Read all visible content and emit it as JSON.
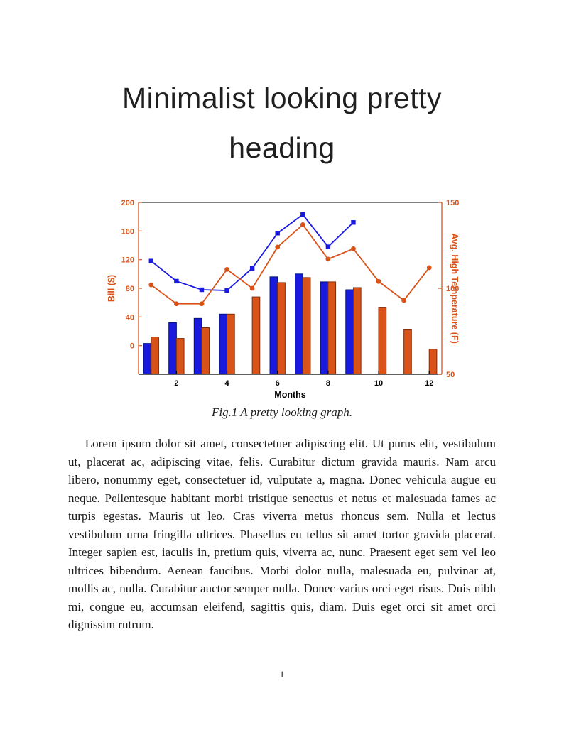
{
  "document": {
    "heading": "Minimalist looking pretty heading",
    "figure_caption": "Fig.1 A pretty looking graph.",
    "paragraph": "Lorem ipsum dolor sit amet, consectetuer adipiscing elit. Ut purus elit, vestibulum ut, placerat ac, adipiscing vitae, felis. Curabitur dictum gravida mauris. Nam arcu libero, nonummy eget, consectetuer id, vulputate a, magna. Donec vehicula augue eu neque. Pellentesque habitant morbi tristique senectus et netus et malesuada fames ac turpis egestas. Mauris ut leo. Cras viverra metus rhoncus sem. Nulla et lectus vestibulum urna fringilla ultrices. Phasellus eu tellus sit amet tortor gravida placerat. Integer sapien est, iaculis in, pretium quis, viverra ac, nunc. Praesent eget sem vel leo ultrices bibendum. Aenean faucibus. Morbi dolor nulla, malesuada eu, pulvinar at, mollis ac, nulla. Curabitur auctor semper nulla. Donec varius orci eget risus. Duis nibh mi, congue eu, accumsan eleifend, sagittis quis, diam. Duis eget orci sit amet orci dignissim rutrum.",
    "page_number": "1"
  },
  "chart_data": {
    "type": "bar",
    "subtype": "grouped-bars-with-two-lines-dual-y-axis",
    "title": "",
    "xlabel": "Months",
    "x": [
      1,
      2,
      3,
      4,
      5,
      6,
      7,
      8,
      9,
      10,
      11,
      12
    ],
    "x_ticks": [
      2,
      4,
      6,
      8,
      10,
      12
    ],
    "xlim": [
      0.5,
      12.5
    ],
    "grid": false,
    "legend": "none",
    "axes": {
      "left": {
        "label": "Bill ($)",
        "lim": [
          -40,
          200
        ],
        "ticks": [
          0,
          40,
          80,
          120,
          160,
          200
        ],
        "color": "#D95319"
      },
      "right": {
        "label": "Avg. High Temperature (F)",
        "lim": [
          50,
          150
        ],
        "ticks": [
          50,
          100,
          150
        ],
        "color": "#D95319"
      }
    },
    "bar_baseline": "axis-bottom",
    "series": [
      {
        "name": "bill-bars-blue",
        "type": "bar",
        "axis": "left",
        "fill": "#1A1ADF",
        "edge": "#00137F",
        "values": [
          3,
          32,
          38,
          44,
          null,
          96,
          100,
          89,
          78,
          null,
          null,
          null
        ]
      },
      {
        "name": "bill-bars-orange",
        "type": "bar",
        "axis": "left",
        "fill": "#D95319",
        "edge": "#7E2F0D",
        "values": [
          12,
          10,
          25,
          44,
          68,
          88,
          95,
          89,
          81,
          53,
          22,
          -5
        ]
      },
      {
        "name": "bill-line-blue",
        "type": "line",
        "axis": "left",
        "marker": "square",
        "color": "#1A1ADF",
        "values": [
          118,
          90,
          78,
          77,
          108,
          157,
          183,
          138,
          172,
          null,
          null,
          null
        ]
      },
      {
        "name": "temperature-line-orange",
        "type": "line",
        "axis": "right",
        "marker": "circle",
        "color": "#D95319",
        "values": [
          102,
          91,
          91,
          111,
          100,
          124,
          137,
          117,
          123,
          104,
          93,
          112
        ]
      }
    ]
  }
}
